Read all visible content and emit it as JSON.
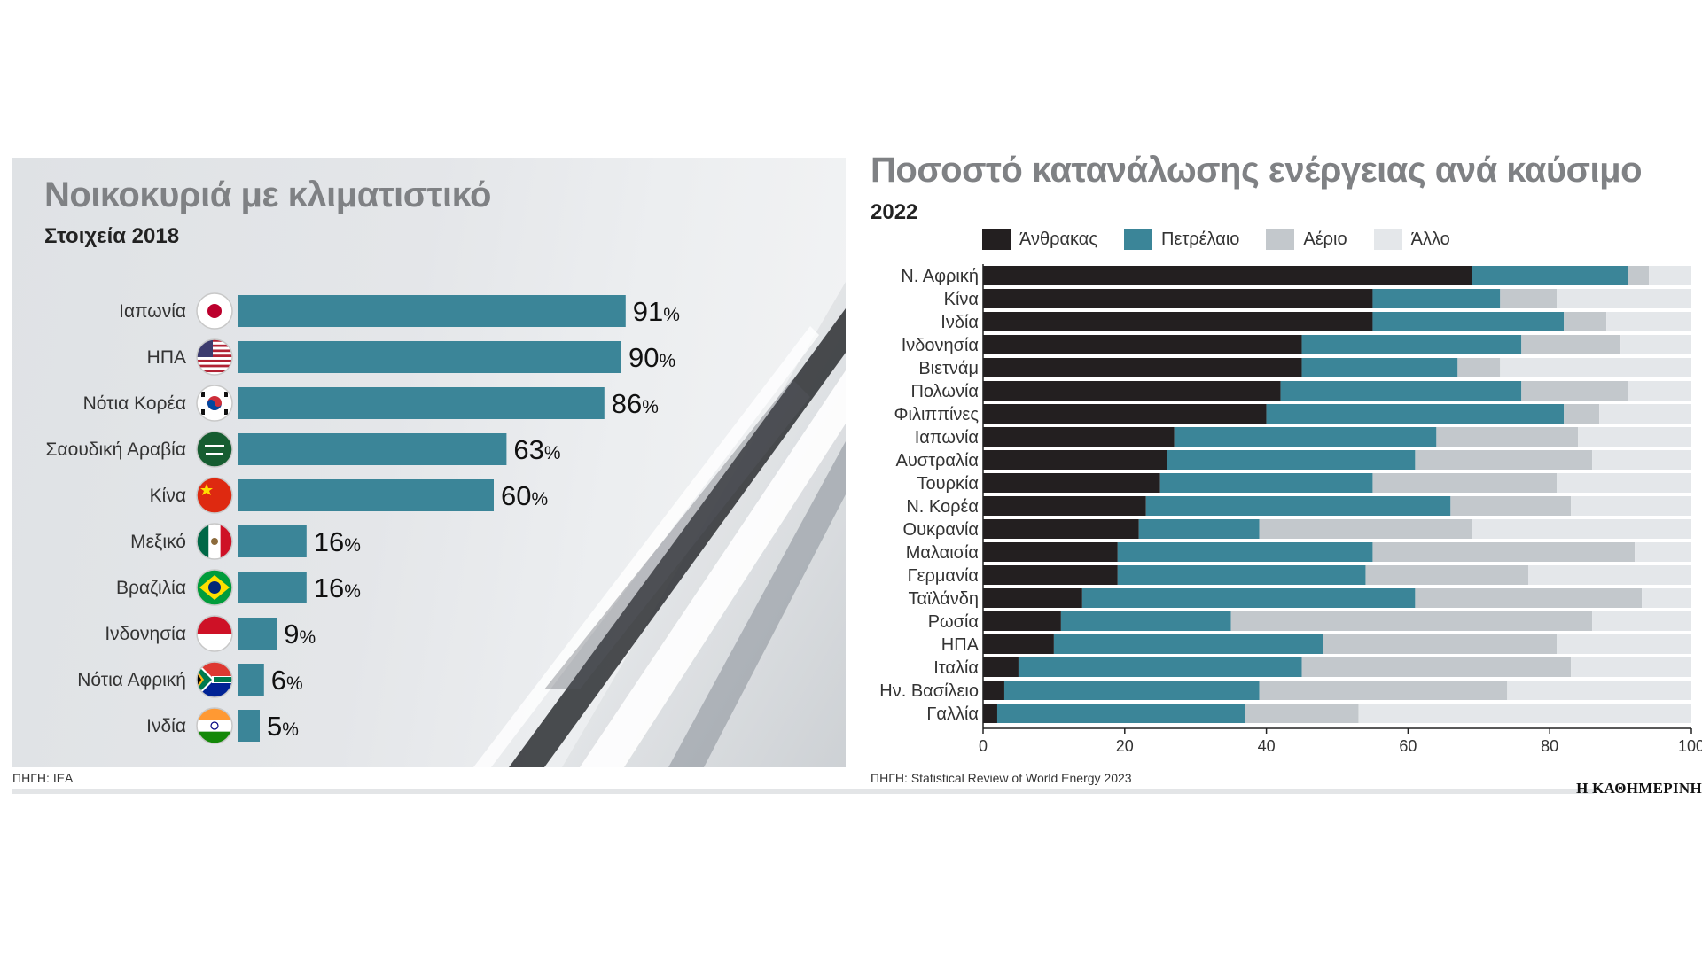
{
  "left": {
    "title": "Νοικοκυριά με κλιματιστικό",
    "subtitle": "Στοιχεία 2018",
    "source": "ΠΗΓΗ: IEA"
  },
  "right": {
    "title": "Ποσοστό κατανάλωσης ενέργειας ανά καύσιμο",
    "subtitle": "2022",
    "source": "ΠΗΓΗ: Statistical Review of World Energy 2023"
  },
  "brand": "Η ΚΑΘΗΜΕΡΙΝΗ",
  "colors": {
    "bar": "#3b8598",
    "coal": "#231f20",
    "oil": "#3b8598",
    "gas": "#c3c8cc",
    "other": "#e4e7ea"
  },
  "chart_data": [
    {
      "type": "bar",
      "orientation": "horizontal",
      "title": "Νοικοκυριά με κλιματιστικό",
      "subtitle": "Στοιχεία 2018",
      "categories": [
        "Ιαπωνία",
        "ΗΠΑ",
        "Νότια Κορέα",
        "Σαουδική Αραβία",
        "Κίνα",
        "Μεξικό",
        "Βραζιλία",
        "Ινδονησία",
        "Νότια Αφρική",
        "Ινδία"
      ],
      "values": [
        91,
        90,
        86,
        63,
        60,
        16,
        16,
        9,
        6,
        5
      ],
      "unit": "%",
      "flags": [
        "japan-flag-icon",
        "usa-flag-icon",
        "south-korea-flag-icon",
        "saudi-arabia-flag-icon",
        "china-flag-icon",
        "mexico-flag-icon",
        "brazil-flag-icon",
        "indonesia-flag-icon",
        "south-africa-flag-icon",
        "india-flag-icon"
      ]
    },
    {
      "type": "bar",
      "orientation": "horizontal",
      "stacked": true,
      "title": "Ποσοστό κατανάλωσης ενέργειας ανά καύσιμο",
      "subtitle": "2022",
      "categories": [
        "Ν. Αφρική",
        "Κίνα",
        "Ινδία",
        "Ινδονησία",
        "Βιετνάμ",
        "Πολωνία",
        "Φιλιππίνες",
        "Ιαπωνία",
        "Αυστραλία",
        "Τουρκία",
        "Ν. Κορέα",
        "Ουκρανία",
        "Μαλαισία",
        "Γερμανία",
        "Ταϊλάνδη",
        "Ρωσία",
        "ΗΠΑ",
        "Ιταλία",
        "Ην. Βασίλειο",
        "Γαλλία"
      ],
      "series": [
        {
          "name": "Άνθρακας",
          "values": [
            69,
            55,
            55,
            45,
            45,
            42,
            40,
            27,
            26,
            25,
            23,
            22,
            19,
            19,
            14,
            11,
            10,
            5,
            3,
            2
          ]
        },
        {
          "name": "Πετρέλαιο",
          "values": [
            22,
            18,
            27,
            31,
            22,
            34,
            42,
            37,
            35,
            30,
            43,
            17,
            36,
            35,
            47,
            24,
            38,
            40,
            36,
            35
          ]
        },
        {
          "name": "Αέριο",
          "values": [
            3,
            8,
            6,
            14,
            6,
            15,
            5,
            20,
            25,
            26,
            17,
            30,
            37,
            23,
            32,
            51,
            33,
            38,
            35,
            16
          ]
        },
        {
          "name": "Άλλο",
          "values": [
            6,
            19,
            12,
            10,
            27,
            9,
            13,
            16,
            14,
            19,
            17,
            31,
            8,
            23,
            7,
            14,
            19,
            17,
            26,
            47
          ]
        }
      ],
      "xlim": [
        0,
        100
      ],
      "xticks": [
        0,
        20,
        40,
        60,
        80,
        100
      ],
      "legend": "top"
    }
  ]
}
